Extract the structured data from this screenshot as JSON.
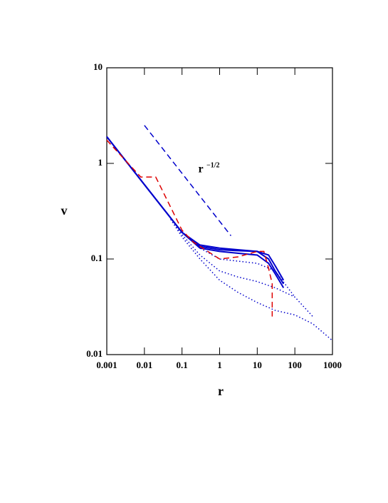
{
  "chart_data": {
    "type": "line",
    "x_label": "r",
    "y_label": "v",
    "annotation": "r",
    "annotation_exponent": "−1/2",
    "xscale": "log",
    "yscale": "log",
    "xlim": [
      0.001,
      1000
    ],
    "ylim": [
      0.01,
      10
    ],
    "xticks": [
      0.001,
      0.01,
      0.1,
      1,
      10,
      100,
      1000
    ],
    "yticks": [
      0.01,
      0.1,
      1,
      10
    ],
    "series": [
      {
        "color": "#0000cc",
        "dash": "solid",
        "x": [
          0.001,
          0.01,
          0.1,
          0.3,
          1,
          3,
          10,
          20,
          30,
          50
        ],
        "values": [
          1.9,
          0.6,
          0.19,
          0.135,
          0.125,
          0.122,
          0.12,
          0.1,
          0.075,
          0.055
        ]
      },
      {
        "color": "#0000cc",
        "dash": "solid",
        "x": [
          0.001,
          0.01,
          0.1,
          0.3,
          1,
          3,
          10,
          20,
          30,
          50
        ],
        "values": [
          1.9,
          0.6,
          0.19,
          0.13,
          0.12,
          0.115,
          0.11,
          0.09,
          0.07,
          0.05
        ]
      },
      {
        "color": "#0000cc",
        "dash": "solid",
        "x": [
          0.001,
          0.01,
          0.1,
          0.3,
          1,
          3,
          10,
          20,
          30,
          50
        ],
        "values": [
          1.9,
          0.6,
          0.19,
          0.14,
          0.13,
          0.125,
          0.12,
          0.11,
          0.085,
          0.06
        ]
      },
      {
        "color": "#0000cc",
        "dash": "dotted",
        "x": [
          0.05,
          0.1,
          0.3,
          1,
          3,
          10,
          30,
          100
        ],
        "values": [
          0.26,
          0.19,
          0.13,
          0.1,
          0.095,
          0.09,
          0.075,
          0.04
        ]
      },
      {
        "color": "#0000cc",
        "dash": "dotted",
        "x": [
          0.05,
          0.1,
          0.3,
          1,
          3,
          10,
          30,
          100,
          300
        ],
        "values": [
          0.26,
          0.18,
          0.11,
          0.075,
          0.065,
          0.058,
          0.05,
          0.04,
          0.025
        ]
      },
      {
        "color": "#0000cc",
        "dash": "dotted",
        "x": [
          0.05,
          0.1,
          0.3,
          1,
          3,
          10,
          30,
          100,
          300,
          1000
        ],
        "values": [
          0.26,
          0.17,
          0.1,
          0.06,
          0.045,
          0.035,
          0.029,
          0.026,
          0.021,
          0.014
        ]
      },
      {
        "color": "#dd0000",
        "dash": "dashed",
        "x": [
          0.001,
          0.008,
          0.02,
          0.1,
          0.2,
          1,
          3,
          10,
          15,
          20,
          25,
          25
        ],
        "values": [
          1.75,
          0.72,
          0.72,
          0.2,
          0.15,
          0.1,
          0.105,
          0.12,
          0.12,
          0.08,
          0.055,
          0.025
        ]
      },
      {
        "color": "#0000cc",
        "dash": "dashed",
        "x": [
          0.01,
          2
        ],
        "values": [
          2.5,
          0.175
        ]
      }
    ]
  }
}
